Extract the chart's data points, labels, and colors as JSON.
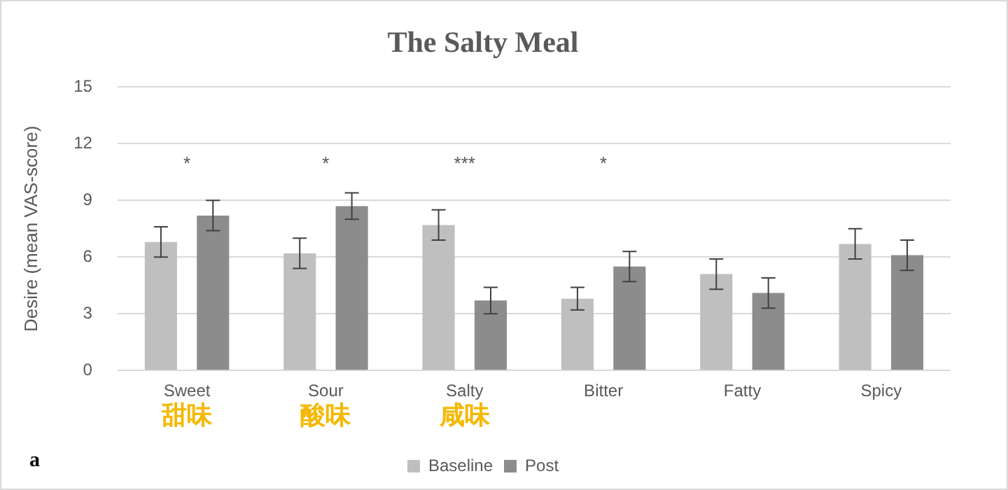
{
  "chart_data": {
    "type": "bar",
    "title": "The Salty Meal",
    "ylabel": "Desire (mean VAS-score)",
    "categories": [
      "Sweet",
      "Sour",
      "Salty",
      "Bitter",
      "Fatty",
      "Spicy"
    ],
    "series": [
      {
        "name": "Baseline",
        "color": "#bfbfbf",
        "values": [
          6.8,
          6.2,
          7.7,
          3.8,
          5.1,
          6.7
        ],
        "errors": [
          0.8,
          0.8,
          0.8,
          0.6,
          0.8,
          0.8
        ]
      },
      {
        "name": "Post",
        "color": "#8c8c8c",
        "values": [
          8.2,
          8.7,
          3.7,
          5.5,
          4.1,
          6.1
        ],
        "errors": [
          0.8,
          0.7,
          0.7,
          0.8,
          0.8,
          0.8
        ]
      }
    ],
    "ylim": [
      0,
      15
    ],
    "yticks": [
      0,
      3,
      6,
      9,
      12,
      15
    ],
    "grid": "y",
    "legend": "bottom",
    "annotations": [
      "*",
      "*",
      "***",
      "*",
      "甜味",
      "酸味",
      "咸味",
      "a"
    ]
  }
}
